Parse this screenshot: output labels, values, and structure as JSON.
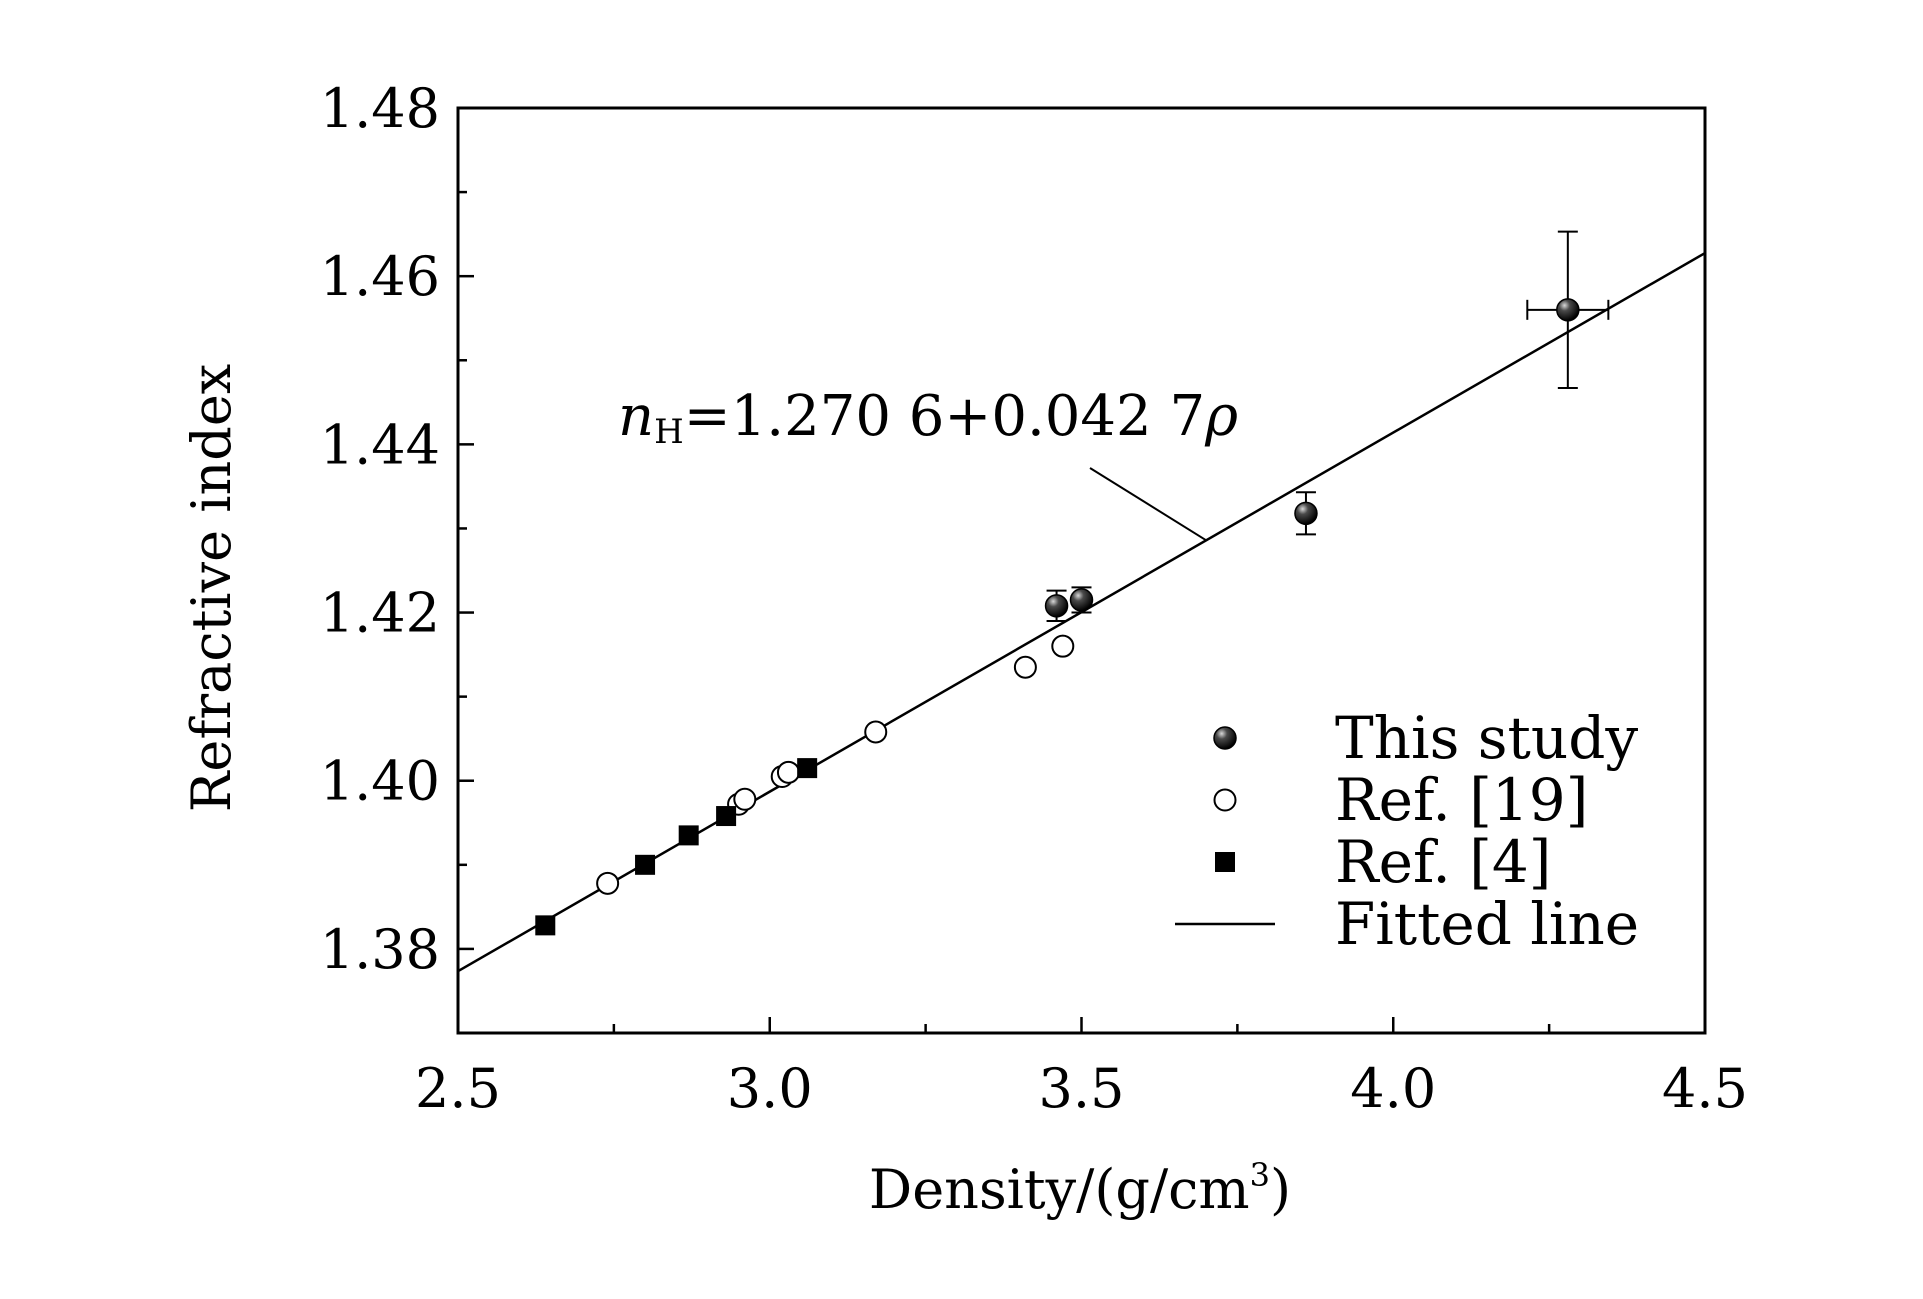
{
  "chart_data": {
    "type": "scatter",
    "xlabel": "Density/(g/cm³)",
    "xlabel_main": "Density/(g/cm",
    "xlabel_sup": "3",
    "xlabel_close": ")",
    "ylabel": "Refractive index",
    "xlim": [
      2.5,
      4.5
    ],
    "ylim": [
      1.37,
      1.48
    ],
    "xticks": [
      2.5,
      3.0,
      3.5,
      4.0,
      4.5
    ],
    "xtick_labels": [
      "2.5",
      "3.0",
      "3.5",
      "4.0",
      "4.5"
    ],
    "yticks": [
      1.38,
      1.4,
      1.42,
      1.44,
      1.46,
      1.48
    ],
    "ytick_labels": [
      "1.38",
      "1.40",
      "1.42",
      "1.44",
      "1.46",
      "1.48"
    ],
    "x_minor_step": 0.25,
    "y_minor_step": 0.01,
    "legend_position": "lower-right",
    "series": [
      {
        "name": "This study",
        "marker": "filled-sphere",
        "points": [
          {
            "x": 3.46,
            "y": 1.4208,
            "yerr": 0.0018
          },
          {
            "x": 3.5,
            "y": 1.4215,
            "yerr": 0.0015
          },
          {
            "x": 3.86,
            "y": 1.4318,
            "yerr": 0.0025
          },
          {
            "x": 4.28,
            "y": 1.456,
            "yerr": 0.0093,
            "xerr": 0.065
          }
        ]
      },
      {
        "name": "Ref. [19]",
        "marker": "open-circle",
        "points": [
          {
            "x": 2.74,
            "y": 1.3878
          },
          {
            "x": 2.95,
            "y": 1.3972
          },
          {
            "x": 2.96,
            "y": 1.3978
          },
          {
            "x": 3.02,
            "y": 1.4005
          },
          {
            "x": 3.03,
            "y": 1.401
          },
          {
            "x": 3.17,
            "y": 1.4058
          },
          {
            "x": 3.41,
            "y": 1.4135
          },
          {
            "x": 3.47,
            "y": 1.416
          }
        ]
      },
      {
        "name": "Ref. [4]",
        "marker": "filled-square",
        "points": [
          {
            "x": 2.64,
            "y": 1.3828
          },
          {
            "x": 2.8,
            "y": 1.39
          },
          {
            "x": 2.87,
            "y": 1.3935
          },
          {
            "x": 2.93,
            "y": 1.3958
          },
          {
            "x": 3.06,
            "y": 1.4015
          }
        ]
      },
      {
        "name": "Fitted line",
        "marker": "line",
        "intercept": 1.2706,
        "slope": 0.0427
      }
    ],
    "annotation": {
      "equation": "nH=1.270 6+0.042 7ρ",
      "symbol": "n",
      "subscript": "H",
      "rest": "=1.270 6+0.042 7",
      "rho": "ρ",
      "pointer_to_x": 3.7
    }
  }
}
